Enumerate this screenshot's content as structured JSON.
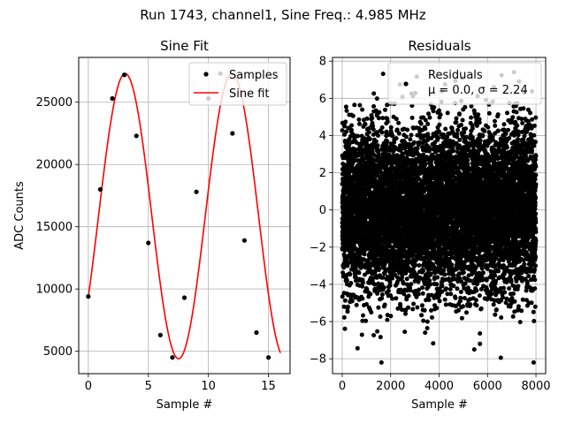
{
  "figure": {
    "suptitle": "Run 1743, channel1, Sine Freq.: 4.985 MHz"
  },
  "colors": {
    "fit_line": "#ff0000",
    "samples": "#000000",
    "grid": "#b0b0b0"
  },
  "chart_data": [
    {
      "type": "scatter+line",
      "title": "Sine Fit",
      "xlabel": "Sample #",
      "ylabel": "ADC Counts",
      "xlim": [
        -0.8,
        16.8
      ],
      "ylim": [
        3200,
        28600
      ],
      "xticks": [
        0,
        5,
        10,
        15
      ],
      "xtick_labels": [
        "0",
        "5",
        "10",
        "15"
      ],
      "yticks": [
        5000,
        10000,
        15000,
        20000,
        25000
      ],
      "ytick_labels": [
        "5000",
        "10000",
        "15000",
        "20000",
        "25000"
      ],
      "grid": true,
      "legend": {
        "placement": "top-right",
        "entries": [
          "Samples",
          "Sine fit"
        ]
      },
      "samples": {
        "name": "Samples",
        "x": [
          0,
          1,
          2,
          3,
          4,
          5,
          6,
          7,
          8,
          9,
          10,
          11,
          12,
          13,
          14,
          15
        ],
        "y": [
          9400,
          18000,
          25300,
          27200,
          22300,
          13700,
          6300,
          4500,
          9300,
          17800,
          25300,
          27300,
          22500,
          13900,
          6500,
          4500
        ]
      },
      "fit": {
        "name": "Sine fit",
        "model": "offset + amplitude * sin(2*pi*freq*x + phase)",
        "offset": 15850,
        "amplitude": 11450,
        "freq": 0.1125,
        "phase": -0.6,
        "x_range": [
          0,
          16
        ]
      }
    },
    {
      "type": "scatter",
      "title": "Residuals",
      "xlabel": "Sample #",
      "ylabel": "",
      "xlim": [
        -400,
        8400
      ],
      "ylim": [
        -8.8,
        8.2
      ],
      "xticks": [
        0,
        2000,
        4000,
        6000,
        8000
      ],
      "xtick_labels": [
        "0",
        "2000",
        "4000",
        "6000",
        "8000"
      ],
      "yticks": [
        -8,
        -6,
        -4,
        -2,
        0,
        2,
        4,
        6,
        8
      ],
      "ytick_labels": [
        "−8",
        "−6",
        "−4",
        "−2",
        "0",
        "2",
        "4",
        "6",
        "8"
      ],
      "grid": true,
      "legend": {
        "placement": "top-right",
        "entries": [
          "Residuals",
          "μ = 0.0, σ = 2.24"
        ]
      },
      "residuals": {
        "name": "Residuals",
        "n_points": 8000,
        "x_range": [
          0,
          7999
        ],
        "mean": 0.0,
        "std": 2.24,
        "min": -8.2,
        "max": 7.4
      }
    }
  ]
}
